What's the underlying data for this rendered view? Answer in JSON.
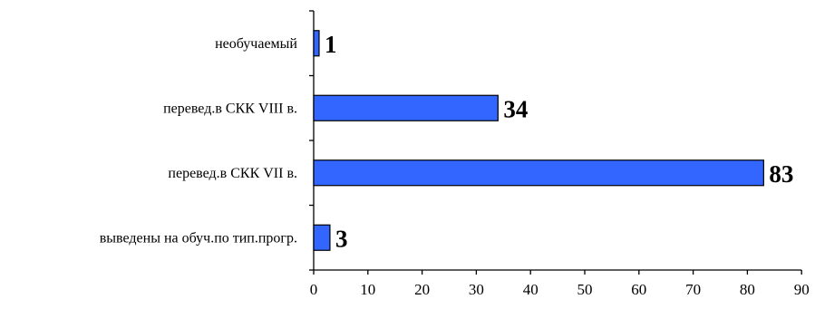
{
  "chart_data": {
    "type": "bar",
    "orientation": "horizontal",
    "categories": [
      "выведены на обуч.по тип.прогр.",
      "перевед.в СКК VII в.",
      "перевед.в СКК VIII в.",
      "необучаемый"
    ],
    "values": [
      3,
      83,
      34,
      1
    ],
    "data_labels": [
      "3",
      "83",
      "34",
      "1"
    ],
    "title": "",
    "xlabel": "",
    "ylabel": "",
    "xlim": [
      0,
      90
    ],
    "x_ticks": [
      "0",
      "10",
      "20",
      "30",
      "40",
      "50",
      "60",
      "70",
      "80",
      "90"
    ],
    "grid": false,
    "legend": "none",
    "colors": {
      "bar_fill": "#3366ff",
      "bar_stroke": "#000000",
      "axis": "#000000"
    }
  }
}
